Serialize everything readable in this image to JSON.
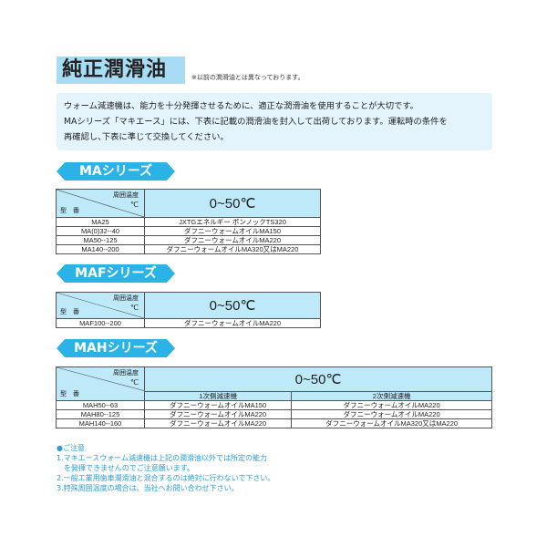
{
  "title": "純正潤滑油",
  "title_note": "※以前の潤滑油とは異なっております。",
  "intro": [
    "ウォーム減速機は、能力を十分発揮させるために、適正な潤滑油を使用することが大切です。",
    "MAシリーズ「マキエース」には、下表に記載の潤滑油を封入して出荷しております。運転時の条件を",
    "再確認し､下表に準じて交換してください。"
  ],
  "corner": {
    "ambient": "周囲温度",
    "unit": "℃",
    "model": "型　番"
  },
  "temp_range": "0~50℃",
  "ma": {
    "label": "MAシリーズ",
    "rows": [
      [
        "MA25",
        "JXTGエネルギー ボンノックTS320"
      ],
      [
        "MA(0)32-‐40",
        "ダフニーウォームオイルMA150"
      ],
      [
        "MA50-‐125",
        "ダフニーウォームオイルMA220"
      ],
      [
        "MA140-‐200",
        "ダフニーウォームオイルMA320又はMA220"
      ]
    ]
  },
  "maf": {
    "label": "MAFシリーズ",
    "rows": [
      [
        "MAF100-‐200",
        "ダフニーウォームオイルMA220"
      ]
    ]
  },
  "mah": {
    "label": "MAHシリーズ",
    "sub": [
      "1次側減速機",
      "2次側減速機"
    ],
    "rows": [
      [
        "MAH50-‐63",
        "ダフニーウォームオイルMA150",
        "ダフニーウォームオイルMA220"
      ],
      [
        "MAH80-‐125",
        "ダフニーウォームオイルMA220",
        "ダフニーウォームオイルMA220"
      ],
      [
        "MAH140-‐160",
        "ダフニーウォームオイルMA220",
        "ダフニーウォームオイルMA320又はMA220"
      ]
    ]
  },
  "notes": [
    "●ご注意",
    "1.マキエースウォーム減速機は上記の潤滑油以外では所定の能力",
    "　を発揮できませんのでご注意願います。",
    "2.一般工業用歯車潤滑油と混合するのは絶対に行わないで下さい。",
    "3.特殊周囲温度の場合は、当社へお問い合わせ下さい。"
  ]
}
